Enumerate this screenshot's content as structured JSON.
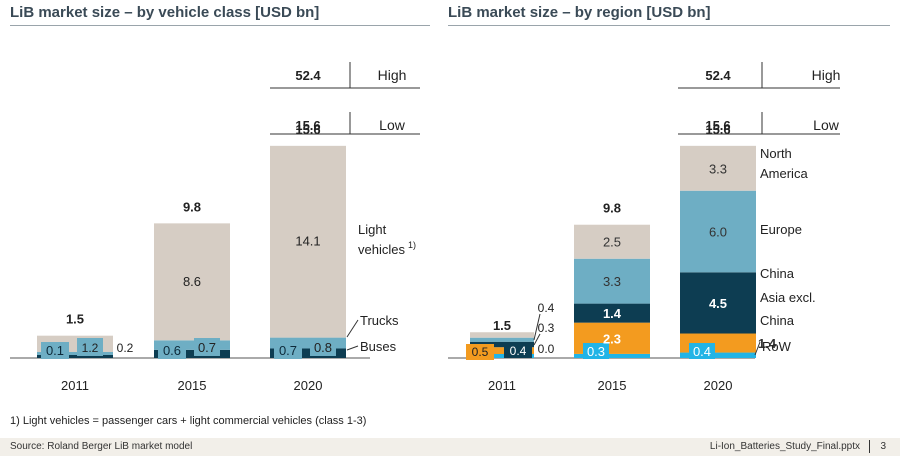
{
  "charts_meta": {
    "left_title": "LiB market size – by vehicle class [USD bn]",
    "right_title": "LiB market size – by region [USD bn]"
  },
  "colors": {
    "light": "#d6cdc4",
    "teal": "#6eaec4",
    "navy": "#0d3d52",
    "orange": "#f39b1f",
    "cyan": "#22b4e6",
    "gray": "#c9c3bc"
  },
  "chart_data": [
    {
      "type": "bar",
      "stacked": true,
      "title": "LiB market size – by vehicle class [USD bn]",
      "categories": [
        "2011",
        "2015",
        "2020"
      ],
      "totals": [
        "1.5",
        "9.8",
        "15.6"
      ],
      "series": [
        {
          "name": "Buses",
          "values": [
            0.1,
            0.6,
            0.7
          ],
          "labels": [
            "0.1",
            "0.6",
            "0.7"
          ],
          "color": "#0d3d52"
        },
        {
          "name": "Trucks",
          "values": [
            0.2,
            0.7,
            0.8
          ],
          "labels": [
            "0.2",
            "0.7",
            "0.8"
          ],
          "color": "#6eaec4"
        },
        {
          "name": "Light vehicles",
          "values": [
            1.2,
            8.6,
            14.1
          ],
          "labels": [
            "1.2",
            "8.6",
            "14.1"
          ],
          "color": "#d6cdc4"
        }
      ],
      "range_2020": {
        "high_value": "52.4",
        "high_label": "High",
        "low_value": "15.6",
        "low_label": "Low"
      },
      "legend_labels": {
        "light": "Light",
        "light2": "vehicles",
        "light_sup": "1)",
        "trucks": "Trucks",
        "buses": "Buses"
      }
    },
    {
      "type": "bar",
      "stacked": true,
      "title": "LiB market size – by region [USD bn]",
      "categories": [
        "2011",
        "2015",
        "2020"
      ],
      "totals": [
        "1.5",
        "9.8",
        "15.6"
      ],
      "series": [
        {
          "name": "RoW",
          "values": [
            0.0,
            0.3,
            0.4
          ],
          "labels": [
            "0.0",
            "0.3",
            "0.4"
          ],
          "color": "#22b4e6"
        },
        {
          "name": "Asia excl. China",
          "values": [
            0.5,
            2.3,
            1.4
          ],
          "labels": [
            "0.5",
            "2.3",
            "1.4"
          ],
          "color": "#f39b1f"
        },
        {
          "name": "China",
          "values": [
            0.4,
            1.4,
            4.5
          ],
          "labels": [
            "0.4",
            "1.4",
            "4.5"
          ],
          "color": "#0d3d52"
        },
        {
          "name": "Europe",
          "values": [
            0.3,
            3.3,
            6.0
          ],
          "labels": [
            "0.3",
            "3.3",
            "6.0"
          ],
          "color": "#6eaec4"
        },
        {
          "name": "North America",
          "values": [
            0.4,
            2.5,
            3.3
          ],
          "labels": [
            "0.4",
            "2.5",
            "3.3"
          ],
          "color": "#d6cdc4"
        }
      ],
      "range_2020": {
        "high_value": "52.4",
        "high_label": "High",
        "low_value": "15.6",
        "low_label": "Low"
      },
      "legend_labels": {
        "na1": "North",
        "na2": "America",
        "europe": "Europe",
        "china": "China",
        "asia1": "Asia excl.",
        "asia2": "China",
        "row": "RoW"
      }
    }
  ],
  "footnote": "1) Light vehicles = passenger cars + light commercial vehicles (class 1-3)",
  "footer": {
    "source": "Source: Roland Berger LiB market model",
    "file": "Li-Ion_Batteries_Study_Final.pptx",
    "page": "3"
  }
}
